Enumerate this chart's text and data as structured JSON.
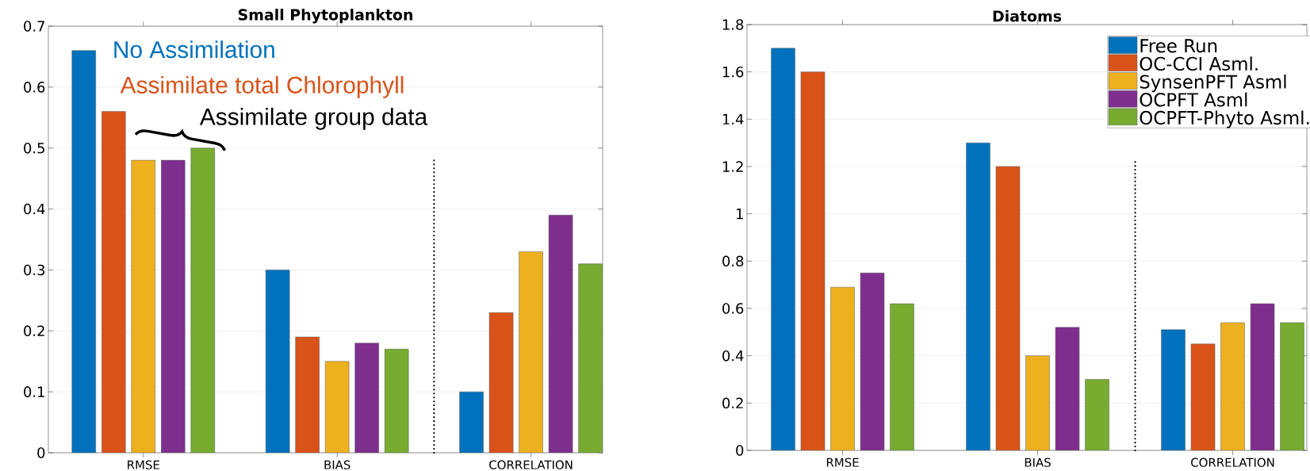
{
  "chart_data": [
    {
      "type": "bar",
      "title": "Small Phytoplankton",
      "categories": [
        "RMSE",
        "BIAS",
        "CORRELATION"
      ],
      "series": [
        {
          "color": "#0072bd",
          "values": [
            0.66,
            0.3,
            0.1
          ]
        },
        {
          "color": "#d95319",
          "values": [
            0.56,
            0.19,
            0.23
          ]
        },
        {
          "color": "#edb120",
          "values": [
            0.48,
            0.15,
            0.33
          ]
        },
        {
          "color": "#7e2f8e",
          "values": [
            0.48,
            0.18,
            0.39
          ]
        },
        {
          "color": "#77ac30",
          "values": [
            0.5,
            0.17,
            0.31
          ]
        }
      ],
      "ylim": [
        0,
        0.7
      ],
      "yticks": [
        0,
        0.1,
        0.2,
        0.3,
        0.4,
        0.5,
        0.6,
        0.7
      ],
      "grid": "y",
      "annotations": [
        "No Assimilation",
        "Assimilate total Chlorophyll",
        "Assimilate group data"
      ]
    },
    {
      "type": "bar",
      "title": "Diatoms",
      "categories": [
        "RMSE",
        "BIAS",
        "CORRELATION"
      ],
      "series": [
        {
          "name": "Free Run",
          "color": "#0072bd",
          "values": [
            1.7,
            1.3,
            0.51
          ]
        },
        {
          "name": "OC-CCI Asml.",
          "color": "#d95319",
          "values": [
            1.6,
            1.2,
            0.45
          ]
        },
        {
          "name": "SynsenPFT Asml",
          "color": "#edb120",
          "values": [
            0.69,
            0.4,
            0.54
          ]
        },
        {
          "name": "OCPFT Asml",
          "color": "#7e2f8e",
          "values": [
            0.75,
            0.52,
            0.62
          ]
        },
        {
          "name": "OCPFT-Phyto Asml.",
          "color": "#77ac30",
          "values": [
            0.62,
            0.3,
            0.54
          ]
        }
      ],
      "ylim": [
        0,
        1.8
      ],
      "yticks": [
        0,
        0.2,
        0.4,
        0.6,
        0.8,
        1,
        1.2,
        1.4,
        1.6,
        1.8
      ],
      "grid": "y",
      "legend": "top right"
    }
  ]
}
